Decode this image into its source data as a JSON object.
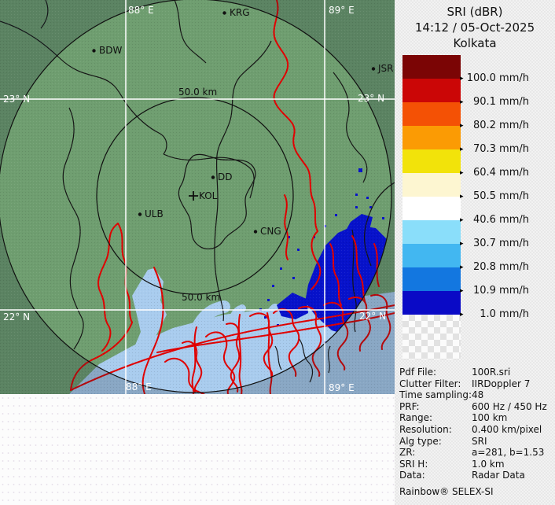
{
  "panel": {
    "title_line1": "SRI (dBR)",
    "title_line2": "14:12 / 05-Oct-2025",
    "title_line3": "Kolkata",
    "legend": {
      "unit": "mm/h",
      "bands": [
        "#7b0505",
        "#cb0606",
        "#f45105",
        "#fb9b04",
        "#f2e30a",
        "#fdf6d1",
        "#ffffff",
        "#8adefa",
        "#42b7f1",
        "#1377e0",
        "#0a0ac6"
      ],
      "labels": [
        "100.0 mm/h",
        "90.1 mm/h",
        "80.2 mm/h",
        "70.3 mm/h",
        "60.4 mm/h",
        "50.5 mm/h",
        "40.6 mm/h",
        "30.7 mm/h",
        "20.8 mm/h",
        "10.9 mm/h",
        "1.0 mm/h"
      ]
    },
    "metadata": {
      "rows": [
        {
          "label": "Pdf File:",
          "value": "100R.sri"
        },
        {
          "label": "Clutter Filter:",
          "value": "IIRDoppler 7"
        },
        {
          "label": "Time sampling:",
          "value": "48"
        },
        {
          "label": "PRF:",
          "value": "600 Hz / 450 Hz"
        },
        {
          "label": "Range:",
          "value": "100 km"
        },
        {
          "label": "Resolution:",
          "value": "0.400 km/pixel"
        },
        {
          "label": "Alg type:",
          "value": "SRI"
        },
        {
          "label": "ZR:",
          "value": "a=281, b=1.53"
        },
        {
          "label": "SRI H:",
          "value": "1.0 km"
        },
        {
          "label": "Data:",
          "value": "Radar Data"
        }
      ],
      "footer": "Rainbow® SELEX-SI"
    }
  },
  "map": {
    "labels": {
      "lon_88_top": "88° E",
      "lon_89_top": "89° E",
      "lon_88_bottom": "88° E",
      "lon_89_bottom": "89° E",
      "lat_23_left": "23° N",
      "lat_23_right": "23° N",
      "lat_22_left": "22° N",
      "lat_22_right": "22° N",
      "ring_top": "50.0 km",
      "ring_bottom": "50.0 km",
      "krg": "KRG",
      "bdw": "BDW",
      "jsr": "JSR",
      "dd": "DD",
      "kol": "KOL",
      "ulb": "ULB",
      "cng": "CNG"
    },
    "colors": {
      "land_inside_ring": "#6f9e70",
      "land_outside_ring": "#5c8264",
      "water": "#a9ccee",
      "radar_echo": "#0712cb",
      "river_outline": "#e10000",
      "district_boundary": "#151515",
      "grid_lines": "#ffffff"
    }
  }
}
